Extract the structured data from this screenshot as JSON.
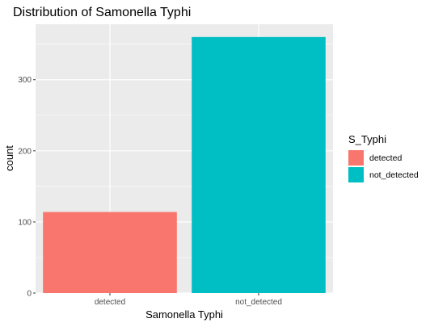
{
  "chart_data": {
    "type": "bar",
    "title": "Distribution of Samonella Typhi",
    "xlabel": "Samonella Typhi",
    "ylabel": "count",
    "categories": [
      "detected",
      "not_detected"
    ],
    "values": [
      114,
      360
    ],
    "ylim": [
      0,
      378
    ],
    "yticks": [
      0,
      100,
      200,
      300
    ],
    "grid": true,
    "legend": {
      "title": "S_Typhi",
      "position": "right",
      "entries": [
        "detected",
        "not_detected"
      ]
    },
    "colors": [
      "#F8766D",
      "#00BFC4"
    ],
    "panel_background": "#EBEBEB",
    "grid_color": "#FFFFFF"
  }
}
